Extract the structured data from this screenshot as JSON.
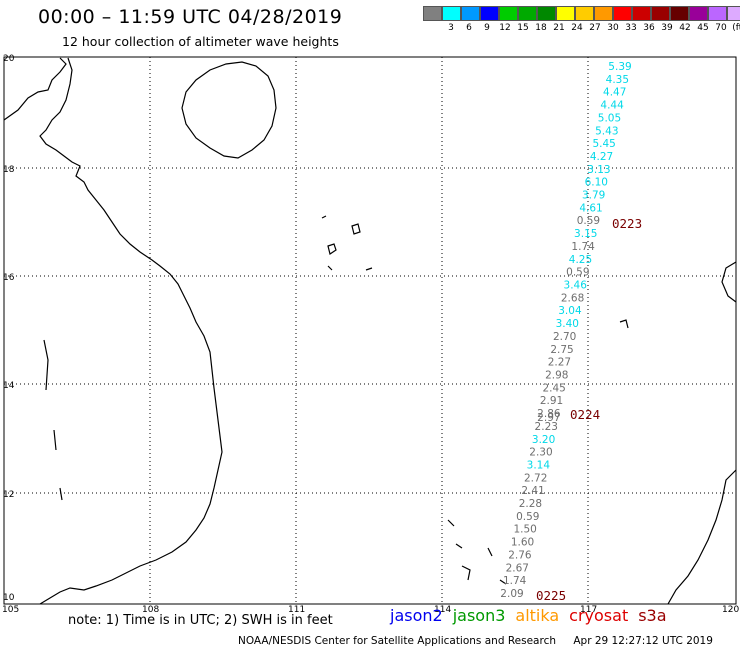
{
  "header": {
    "title": "00:00 – 11:59 UTC 04/28/2019",
    "subtitle": "12 hour collection of altimeter wave heights"
  },
  "legend": {
    "unit": "(ft)",
    "colors": [
      "#808080",
      "#00ffff",
      "#0099ff",
      "#0000ff",
      "#00cc00",
      "#00aa00",
      "#008800",
      "#ffff00",
      "#ffcc00",
      "#ff9900",
      "#ff0000",
      "#cc0000",
      "#990000",
      "#660000",
      "#990099",
      "#bb66ff",
      "#ddaaff",
      "#000000"
    ],
    "labels": [
      "3",
      "6",
      "9",
      "12",
      "15",
      "18",
      "21",
      "24",
      "27",
      "30",
      "33",
      "36",
      "39",
      "42",
      "45",
      "70"
    ]
  },
  "axes": {
    "x_labels": [
      "105",
      "108",
      "111",
      "114",
      "117",
      "120"
    ],
    "y_labels": [
      "10",
      "12",
      "14",
      "16",
      "18",
      "20"
    ]
  },
  "track_points": [
    {
      "v": "5.39",
      "c": "cyan"
    },
    {
      "v": "4.35",
      "c": "cyan"
    },
    {
      "v": "4.47",
      "c": "cyan"
    },
    {
      "v": "4.44",
      "c": "cyan"
    },
    {
      "v": "5.05",
      "c": "cyan"
    },
    {
      "v": "5.43",
      "c": "cyan"
    },
    {
      "v": "5.45",
      "c": "cyan"
    },
    {
      "v": "4.27",
      "c": "cyan"
    },
    {
      "v": "3.13",
      "c": "cyan"
    },
    {
      "v": "6.10",
      "c": "cyan"
    },
    {
      "v": "3.79",
      "c": "cyan"
    },
    {
      "v": "4.61",
      "c": "cyan"
    },
    {
      "v": "0.59",
      "c": "gray"
    },
    {
      "v": "3.15",
      "c": "cyan"
    },
    {
      "v": "1.74",
      "c": "gray"
    },
    {
      "v": "4.25",
      "c": "cyan"
    },
    {
      "v": "0.59",
      "c": "gray"
    },
    {
      "v": "3.46",
      "c": "cyan"
    },
    {
      "v": "2.68",
      "c": "gray"
    },
    {
      "v": "3.04",
      "c": "cyan"
    },
    {
      "v": "3.40",
      "c": "cyan"
    },
    {
      "v": "2.70",
      "c": "gray"
    },
    {
      "v": "2.75",
      "c": "gray"
    },
    {
      "v": "2.27",
      "c": "gray"
    },
    {
      "v": "2.98",
      "c": "gray"
    },
    {
      "v": "2.45",
      "c": "gray"
    },
    {
      "v": "2.91",
      "c": "gray"
    },
    {
      "v": "2.86",
      "c": "gray"
    },
    {
      "v": "2.23",
      "c": "gray"
    },
    {
      "v": "3.20",
      "c": "cyan"
    },
    {
      "v": "2.30",
      "c": "gray"
    },
    {
      "v": "3.14",
      "c": "cyan"
    },
    {
      "v": "2.72",
      "c": "gray"
    },
    {
      "v": "2.41",
      "c": "gray"
    },
    {
      "v": "2.28",
      "c": "gray"
    },
    {
      "v": "0.59",
      "c": "gray"
    },
    {
      "v": "1.50",
      "c": "gray"
    },
    {
      "v": "1.60",
      "c": "gray"
    },
    {
      "v": "2.76",
      "c": "gray"
    },
    {
      "v": "2.67",
      "c": "gray"
    },
    {
      "v": "1.74",
      "c": "gray"
    },
    {
      "v": "2.09",
      "c": "gray"
    }
  ],
  "track_overlap_label": "2.97",
  "time_labels": [
    "0223",
    "0224",
    "0225"
  ],
  "track_colors": {
    "cyan": "#00d8e8",
    "gray": "#6e6e6e",
    "time": "#7a0000"
  },
  "footer": {
    "note": "note: 1) Time is in UTC; 2) SWH is in feet",
    "satellites": [
      {
        "name": "jason2",
        "color": "#0000ee"
      },
      {
        "name": "jason3",
        "color": "#009900"
      },
      {
        "name": "altika",
        "color": "#ff9900"
      },
      {
        "name": "cryosat",
        "color": "#dd0000"
      },
      {
        "name": "s3a",
        "color": "#990000"
      }
    ],
    "credit": "NOAA/NESDIS Center for Satellite Applications and Research",
    "timestamp": "Apr 29 12:27:12 UTC 2019"
  }
}
